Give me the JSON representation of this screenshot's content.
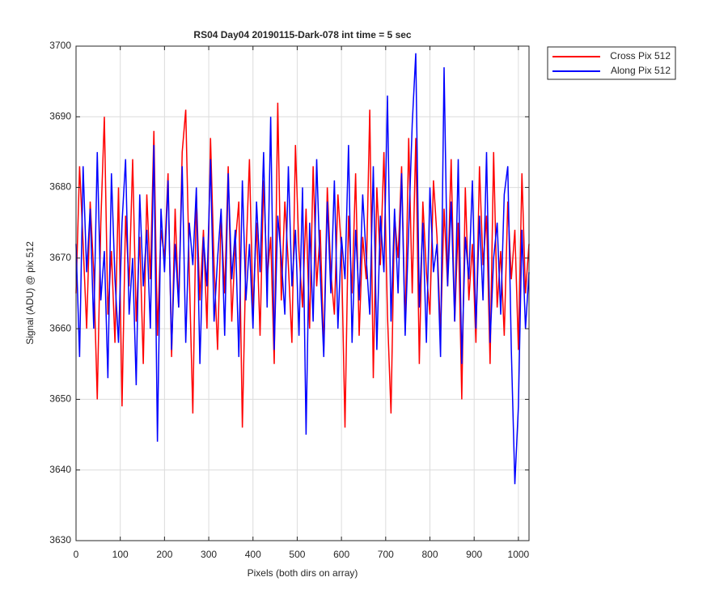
{
  "chart_data": {
    "type": "line",
    "title": "RS04 Day04 20190115-Dark-078 int time = 5 sec",
    "x_label": "Pixels (both dirs on array)",
    "y_label": "Signal (ADU) @ pix 512",
    "x": [
      0,
      8,
      16,
      24,
      32,
      40,
      48,
      56,
      64,
      72,
      80,
      88,
      96,
      104,
      112,
      120,
      128,
      136,
      144,
      152,
      160,
      168,
      176,
      184,
      192,
      200,
      208,
      216,
      224,
      232,
      240,
      248,
      256,
      264,
      272,
      280,
      288,
      296,
      304,
      312,
      320,
      328,
      336,
      344,
      352,
      360,
      368,
      376,
      384,
      392,
      400,
      408,
      416,
      424,
      432,
      440,
      448,
      456,
      464,
      472,
      480,
      488,
      496,
      504,
      512,
      520,
      528,
      536,
      544,
      552,
      560,
      568,
      576,
      584,
      592,
      600,
      608,
      616,
      624,
      632,
      640,
      648,
      656,
      664,
      672,
      680,
      688,
      696,
      704,
      712,
      720,
      728,
      736,
      744,
      752,
      760,
      768,
      776,
      784,
      792,
      800,
      808,
      816,
      824,
      832,
      840,
      848,
      856,
      864,
      872,
      880,
      888,
      896,
      904,
      912,
      920,
      928,
      936,
      944,
      952,
      960,
      968,
      976,
      984,
      992,
      1000,
      1008,
      1016,
      1024
    ],
    "series": [
      {
        "name": "Cross Pix 512",
        "color": "#ff0000",
        "values": [
          3665,
          3683,
          3672,
          3660,
          3678,
          3668,
          3650,
          3675,
          3690,
          3662,
          3671,
          3658,
          3680,
          3649,
          3676,
          3666,
          3684,
          3661,
          3673,
          3655,
          3679,
          3667,
          3688,
          3659,
          3674,
          3670,
          3682,
          3656,
          3677,
          3663,
          3685,
          3691,
          3668,
          3648,
          3679,
          3664,
          3674,
          3660,
          3687,
          3669,
          3657,
          3676,
          3665,
          3683,
          3661,
          3672,
          3678,
          3646,
          3670,
          3684,
          3662,
          3675,
          3659,
          3681,
          3667,
          3673,
          3655,
          3692,
          3664,
          3678,
          3669,
          3658,
          3686,
          3671,
          3663,
          3677,
          3660,
          3683,
          3666,
          3674,
          3657,
          3680,
          3668,
          3662,
          3679,
          3671,
          3646,
          3676,
          3665,
          3682,
          3659,
          3673,
          3667,
          3691,
          3653,
          3680,
          3669,
          3685,
          3662,
          3648,
          3676,
          3670,
          3683,
          3660,
          3687,
          3665,
          3687,
          3655,
          3678,
          3668,
          3662,
          3681,
          3673,
          3659,
          3677,
          3666,
          3684,
          3661,
          3675,
          3650,
          3680,
          3664,
          3672,
          3658,
          3683,
          3669,
          3676,
          3655,
          3685,
          3663,
          3671,
          3659,
          3678,
          3667,
          3674,
          3657,
          3682,
          3665,
          3672
        ]
      },
      {
        "name": "Along Pix 512",
        "color": "#0000ff",
        "values": [
          3672,
          3656,
          3683,
          3668,
          3677,
          3660,
          3685,
          3664,
          3671,
          3653,
          3682,
          3667,
          3658,
          3675,
          3684,
          3662,
          3670,
          3652,
          3679,
          3666,
          3674,
          3660,
          3686,
          3644,
          3677,
          3668,
          3681,
          3657,
          3672,
          3663,
          3683,
          3658,
          3675,
          3669,
          3680,
          3655,
          3673,
          3666,
          3684,
          3661,
          3670,
          3677,
          3659,
          3682,
          3667,
          3674,
          3656,
          3681,
          3664,
          3672,
          3660,
          3678,
          3668,
          3685,
          3663,
          3690,
          3657,
          3676,
          3670,
          3662,
          3683,
          3666,
          3674,
          3659,
          3680,
          3645,
          3675,
          3661,
          3684,
          3668,
          3656,
          3678,
          3665,
          3681,
          3660,
          3673,
          3667,
          3686,
          3658,
          3674,
          3664,
          3679,
          3670,
          3662,
          3683,
          3657,
          3676,
          3668,
          3693,
          3661,
          3677,
          3665,
          3682,
          3659,
          3674,
          3689,
          3699,
          3663,
          3675,
          3658,
          3680,
          3668,
          3672,
          3656,
          3697,
          3666,
          3678,
          3661,
          3684,
          3655,
          3673,
          3667,
          3681,
          3660,
          3676,
          3664,
          3685,
          3658,
          3670,
          3675,
          3662,
          3679,
          3683,
          3657,
          3638,
          3649,
          3674,
          3660,
          3668
        ]
      }
    ],
    "xlim": [
      0,
      1024
    ],
    "xticks": [
      0,
      100,
      200,
      300,
      400,
      500,
      600,
      700,
      800,
      900,
      1000
    ],
    "ylim": [
      3630,
      3700
    ],
    "yticks": [
      3630,
      3640,
      3650,
      3660,
      3670,
      3680,
      3690,
      3700
    ],
    "grid": true,
    "legend": "outside-top-right"
  }
}
